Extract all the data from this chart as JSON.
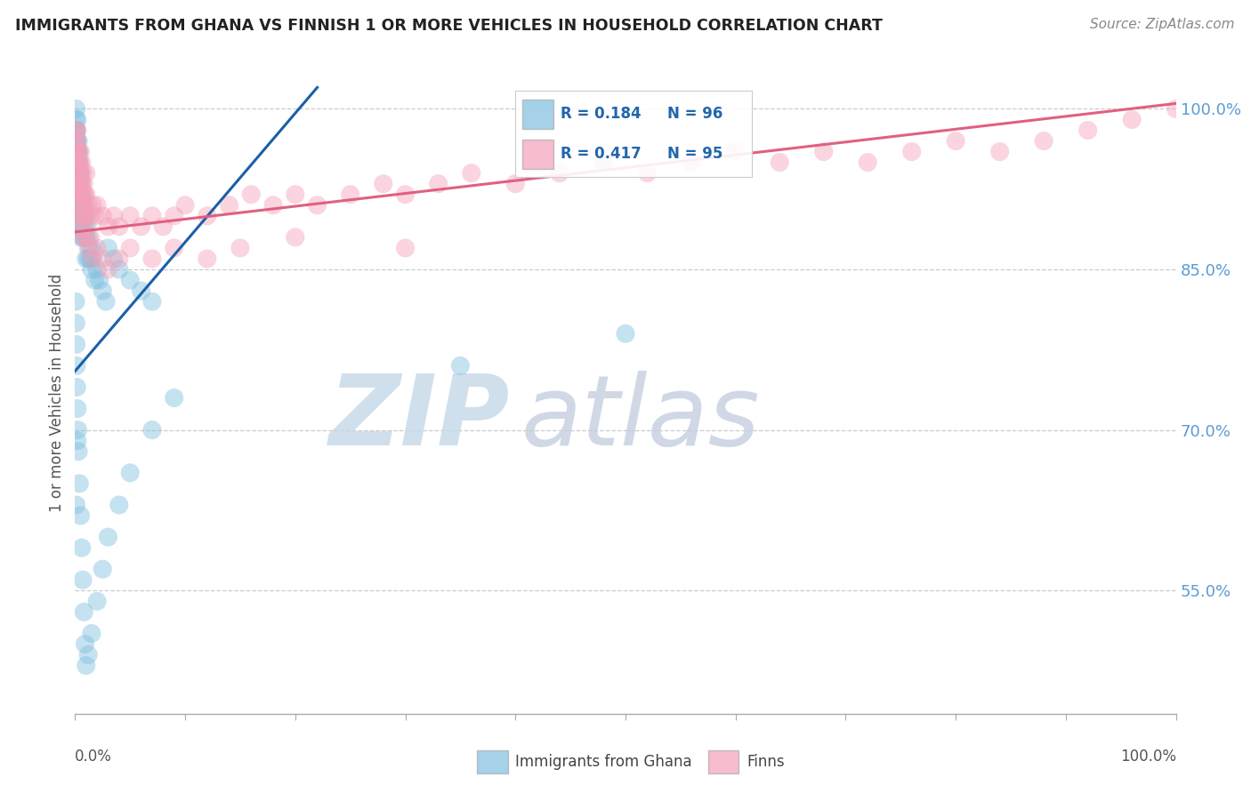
{
  "title": "IMMIGRANTS FROM GHANA VS FINNISH 1 OR MORE VEHICLES IN HOUSEHOLD CORRELATION CHART",
  "source": "Source: ZipAtlas.com",
  "ylabel": "1 or more Vehicles in Household",
  "ytick_labels": [
    "100.0%",
    "85.0%",
    "70.0%",
    "55.0%"
  ],
  "ytick_values": [
    1.0,
    0.85,
    0.7,
    0.55
  ],
  "xlim": [
    0.0,
    1.0
  ],
  "ylim": [
    0.435,
    1.035
  ],
  "legend_r1": "R = 0.184",
  "legend_n1": "N = 96",
  "legend_r2": "R = 0.417",
  "legend_n2": "N = 95",
  "blue_color": "#7fbfdf",
  "pink_color": "#f4a0b8",
  "blue_line_color": "#1a5fa8",
  "pink_line_color": "#e06080",
  "watermark_zip_color": "#c5d8e8",
  "watermark_atlas_color": "#c5cfe0",
  "ghana_x": [
    0.0005,
    0.0005,
    0.0008,
    0.001,
    0.001,
    0.001,
    0.001,
    0.001,
    0.0012,
    0.0012,
    0.0015,
    0.0015,
    0.0015,
    0.002,
    0.002,
    0.002,
    0.002,
    0.002,
    0.0025,
    0.0025,
    0.003,
    0.003,
    0.003,
    0.003,
    0.003,
    0.0035,
    0.0035,
    0.004,
    0.004,
    0.004,
    0.004,
    0.0045,
    0.005,
    0.005,
    0.005,
    0.005,
    0.006,
    0.006,
    0.006,
    0.007,
    0.007,
    0.007,
    0.008,
    0.008,
    0.009,
    0.009,
    0.01,
    0.01,
    0.01,
    0.011,
    0.012,
    0.012,
    0.013,
    0.014,
    0.015,
    0.015,
    0.016,
    0.018,
    0.02,
    0.022,
    0.025,
    0.028,
    0.03,
    0.035,
    0.04,
    0.05,
    0.06,
    0.07,
    0.0005,
    0.0008,
    0.001,
    0.0012,
    0.0015,
    0.002,
    0.0025,
    0.003,
    0.004,
    0.005,
    0.006,
    0.007,
    0.008,
    0.009,
    0.01,
    0.012,
    0.015,
    0.02,
    0.025,
    0.03,
    0.04,
    0.05,
    0.07,
    0.09,
    0.35,
    0.5,
    0.001,
    0.002
  ],
  "ghana_y": [
    0.98,
    0.97,
    0.99,
    0.98,
    0.96,
    0.95,
    0.93,
    1.0,
    0.97,
    0.95,
    0.98,
    0.96,
    0.94,
    0.99,
    0.97,
    0.95,
    0.93,
    0.91,
    0.96,
    0.94,
    0.97,
    0.95,
    0.93,
    0.91,
    0.89,
    0.96,
    0.94,
    0.95,
    0.93,
    0.91,
    0.89,
    0.94,
    0.94,
    0.92,
    0.9,
    0.88,
    0.93,
    0.91,
    0.89,
    0.92,
    0.9,
    0.88,
    0.91,
    0.89,
    0.9,
    0.88,
    0.9,
    0.88,
    0.86,
    0.89,
    0.88,
    0.86,
    0.87,
    0.86,
    0.87,
    0.85,
    0.86,
    0.84,
    0.85,
    0.84,
    0.83,
    0.82,
    0.87,
    0.86,
    0.85,
    0.84,
    0.83,
    0.82,
    0.82,
    0.8,
    0.78,
    0.76,
    0.74,
    0.72,
    0.7,
    0.68,
    0.65,
    0.62,
    0.59,
    0.56,
    0.53,
    0.5,
    0.48,
    0.49,
    0.51,
    0.54,
    0.57,
    0.6,
    0.63,
    0.66,
    0.7,
    0.73,
    0.76,
    0.79,
    0.63,
    0.69
  ],
  "finn_x": [
    0.0005,
    0.0008,
    0.001,
    0.001,
    0.0012,
    0.0015,
    0.002,
    0.002,
    0.002,
    0.0025,
    0.003,
    0.003,
    0.003,
    0.004,
    0.004,
    0.005,
    0.005,
    0.005,
    0.006,
    0.006,
    0.007,
    0.007,
    0.008,
    0.008,
    0.009,
    0.009,
    0.01,
    0.01,
    0.012,
    0.014,
    0.016,
    0.018,
    0.02,
    0.025,
    0.03,
    0.035,
    0.04,
    0.05,
    0.06,
    0.07,
    0.08,
    0.09,
    0.1,
    0.12,
    0.14,
    0.16,
    0.18,
    0.2,
    0.22,
    0.25,
    0.28,
    0.3,
    0.33,
    0.36,
    0.4,
    0.44,
    0.48,
    0.52,
    0.56,
    0.6,
    0.64,
    0.68,
    0.72,
    0.76,
    0.8,
    0.84,
    0.88,
    0.92,
    0.96,
    1.0,
    0.001,
    0.0015,
    0.002,
    0.003,
    0.004,
    0.005,
    0.006,
    0.007,
    0.008,
    0.009,
    0.01,
    0.012,
    0.014,
    0.016,
    0.02,
    0.025,
    0.03,
    0.04,
    0.05,
    0.07,
    0.09,
    0.12,
    0.15,
    0.2,
    0.3
  ],
  "finn_y": [
    0.95,
    0.97,
    0.96,
    0.98,
    0.95,
    0.97,
    0.96,
    0.94,
    0.98,
    0.95,
    0.94,
    0.96,
    0.93,
    0.95,
    0.93,
    0.94,
    0.92,
    0.96,
    0.93,
    0.95,
    0.94,
    0.92,
    0.93,
    0.91,
    0.92,
    0.9,
    0.92,
    0.94,
    0.91,
    0.9,
    0.91,
    0.9,
    0.91,
    0.9,
    0.89,
    0.9,
    0.89,
    0.9,
    0.89,
    0.9,
    0.89,
    0.9,
    0.91,
    0.9,
    0.91,
    0.92,
    0.91,
    0.92,
    0.91,
    0.92,
    0.93,
    0.92,
    0.93,
    0.94,
    0.93,
    0.94,
    0.95,
    0.94,
    0.95,
    0.96,
    0.95,
    0.96,
    0.95,
    0.96,
    0.97,
    0.96,
    0.97,
    0.98,
    0.99,
    1.0,
    0.92,
    0.93,
    0.91,
    0.92,
    0.9,
    0.91,
    0.89,
    0.9,
    0.88,
    0.89,
    0.88,
    0.87,
    0.88,
    0.86,
    0.87,
    0.86,
    0.85,
    0.86,
    0.87,
    0.86,
    0.87,
    0.86,
    0.87,
    0.88,
    0.87
  ],
  "blue_trendline_x": [
    0.0,
    0.22
  ],
  "blue_trendline_y_start": 0.755,
  "blue_trendline_y_end": 1.02,
  "pink_trendline_x": [
    0.0,
    1.0
  ],
  "pink_trendline_y_start": 0.885,
  "pink_trendline_y_end": 1.005
}
